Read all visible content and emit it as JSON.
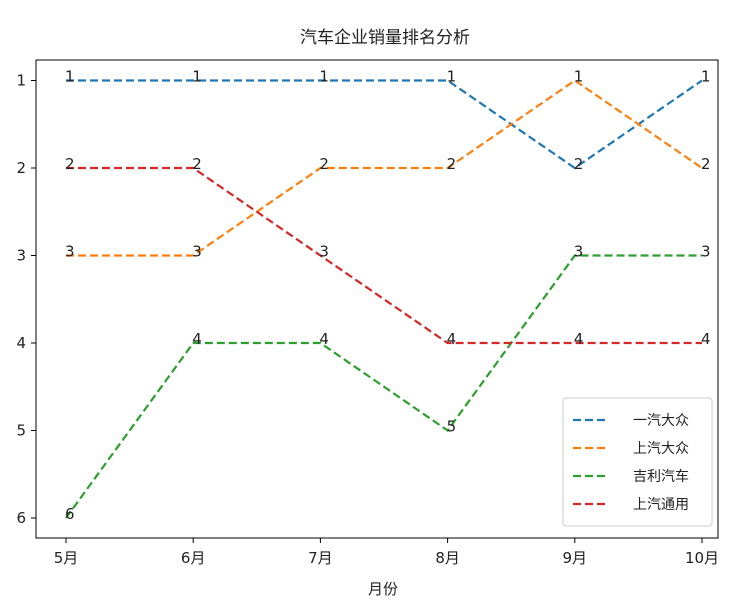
{
  "chart_data": {
    "type": "line",
    "title": "汽车企业销量排名分析",
    "xlabel": "月份",
    "ylabel": "",
    "categories": [
      "5月",
      "6月",
      "7月",
      "8月",
      "9月",
      "10月"
    ],
    "y_ticks": [
      1,
      2,
      3,
      4,
      5,
      6
    ],
    "ylim": [
      6.25,
      0.8
    ],
    "y_inverted": true,
    "grid": false,
    "legend_position": "bottom-right",
    "line_style": "dashed",
    "series": [
      {
        "name": "一汽大众",
        "color": "#1f77b4",
        "values": [
          1,
          1,
          1,
          1,
          2,
          1
        ]
      },
      {
        "name": "上汽大众",
        "color": "#ff7f0e",
        "values": [
          3,
          3,
          2,
          2,
          1,
          2
        ]
      },
      {
        "name": "吉利汽车",
        "color": "#2ca02c",
        "values": [
          6,
          4,
          4,
          5,
          3,
          3
        ]
      },
      {
        "name": "上汽通用",
        "color": "#d62728",
        "values": [
          2,
          2,
          3,
          4,
          4,
          4
        ]
      }
    ]
  }
}
